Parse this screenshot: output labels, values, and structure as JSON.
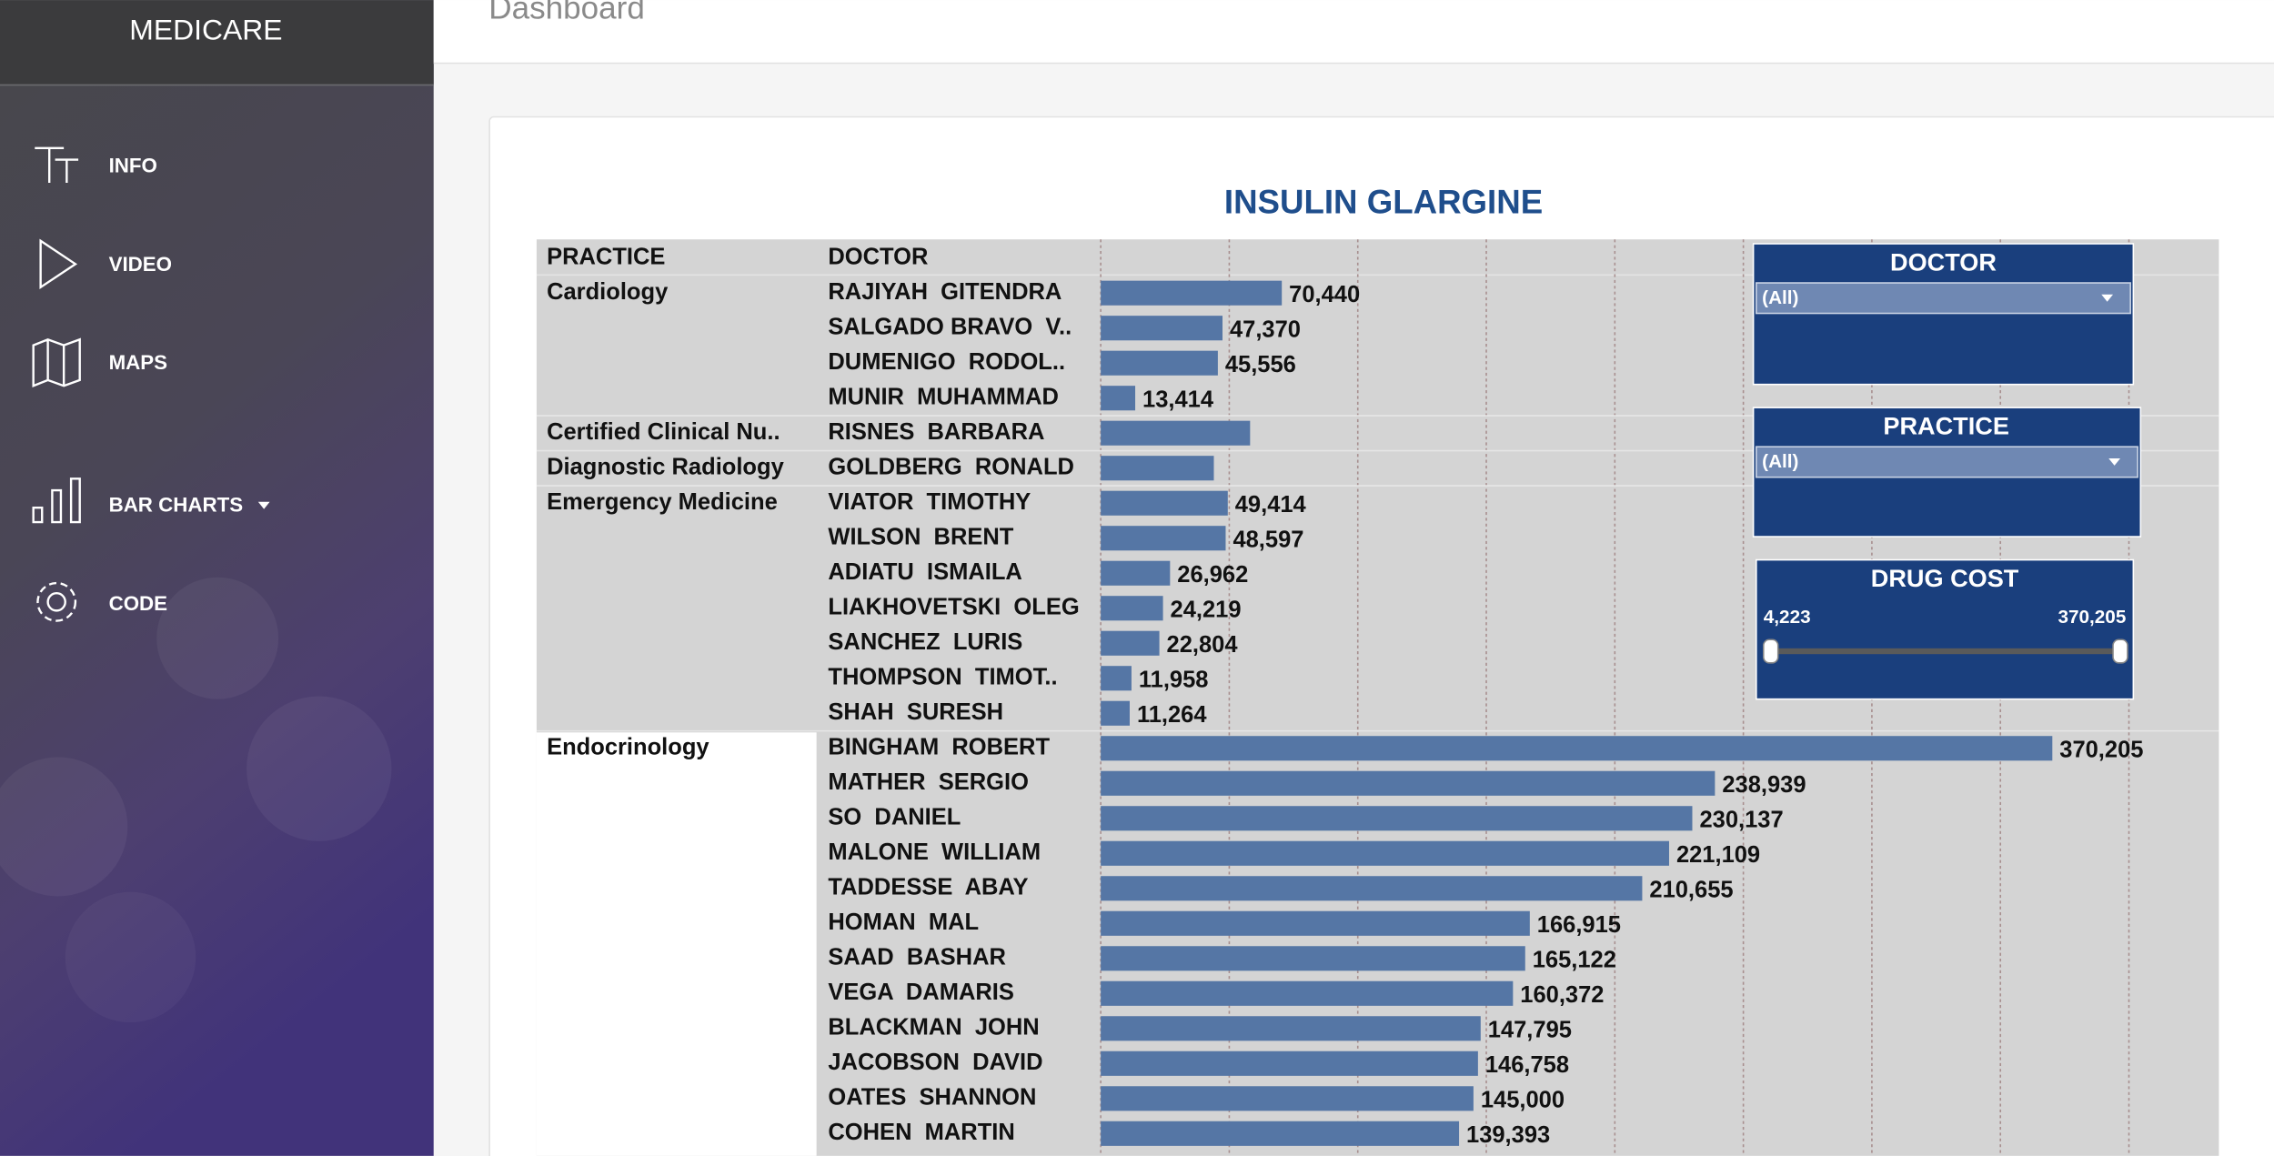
{
  "sidebar": {
    "title": "MEDICARE",
    "items": [
      "INFO",
      "VIDEO",
      "MAPS",
      "BAR CHARTS",
      "CODE"
    ]
  },
  "header": {
    "title": "Dashboard"
  },
  "chart_data": {
    "type": "bar",
    "title": "INSULIN GLARGINE",
    "column_headers": [
      "PRACTICE",
      "DOCTOR"
    ],
    "practice": [
      "Cardiology",
      null,
      null,
      null,
      "Certified Clinical Nu..",
      "Diagnostic Radiology",
      "Emergency Medicine",
      null,
      null,
      null,
      null,
      null,
      null,
      "Endocrinology",
      null,
      null,
      null,
      null,
      null,
      null,
      null,
      null,
      null,
      null,
      null
    ],
    "categories": [
      "RAJIYAH  GITENDRA",
      "SALGADO BRAVO  V..",
      "DUMENIGO  RODOL..",
      "MUNIR  MUHAMMAD",
      "RISNES  BARBARA",
      "GOLDBERG  RONALD",
      "VIATOR  TIMOTHY",
      "WILSON  BRENT",
      "ADIATU  ISMAILA",
      "LIAKHOVETSKI  OLEG",
      "SANCHEZ  LURIS",
      "THOMPSON  TIMOT..",
      "SHAH  SURESH",
      "BINGHAM  ROBERT",
      "MATHER  SERGIO",
      "SO  DANIEL",
      "MALONE  WILLIAM",
      "TADDESSE  ABAY",
      "HOMAN  MAL",
      "SAAD  BASHAR",
      "VEGA  DAMARIS",
      "BLACKMAN  JOHN",
      "JACOBSON  DAVID",
      "OATES  SHANNON",
      "COHEN  MARTIN"
    ],
    "values": [
      70440,
      47370,
      45556,
      13414,
      58100,
      44000,
      49414,
      48597,
      26962,
      24219,
      22804,
      11958,
      11264,
      370205,
      238939,
      230137,
      221109,
      210655,
      166915,
      165122,
      160372,
      147795,
      146758,
      145000,
      139393
    ],
    "value_labels": [
      "70,440",
      "47,370",
      "45,556",
      "13,414",
      null,
      null,
      "49,414",
      "48,597",
      "26,962",
      "24,219",
      "22,804",
      "11,958",
      "11,264",
      "370,205",
      "238,939",
      "230,137",
      "221,109",
      "210,655",
      "166,915",
      "165,122",
      "160,372",
      "147,795",
      "146,758",
      "145,000",
      "139,393"
    ],
    "color": "#5576a5",
    "xlim": [
      0,
      435000
    ],
    "xticks": [
      0,
      50000,
      100000,
      150000,
      200000,
      250000,
      300000,
      350000,
      400000
    ],
    "grid": true
  },
  "filters": [
    {
      "title": "DOCTOR",
      "selection": "(All)"
    },
    {
      "title": "PRACTICE",
      "selection": "(All)"
    },
    {
      "title": "DRUG COST",
      "range": [
        {
          "value": 4223,
          "label": "4,223"
        },
        {
          "value": 370205,
          "label": "370,205"
        }
      ]
    }
  ]
}
